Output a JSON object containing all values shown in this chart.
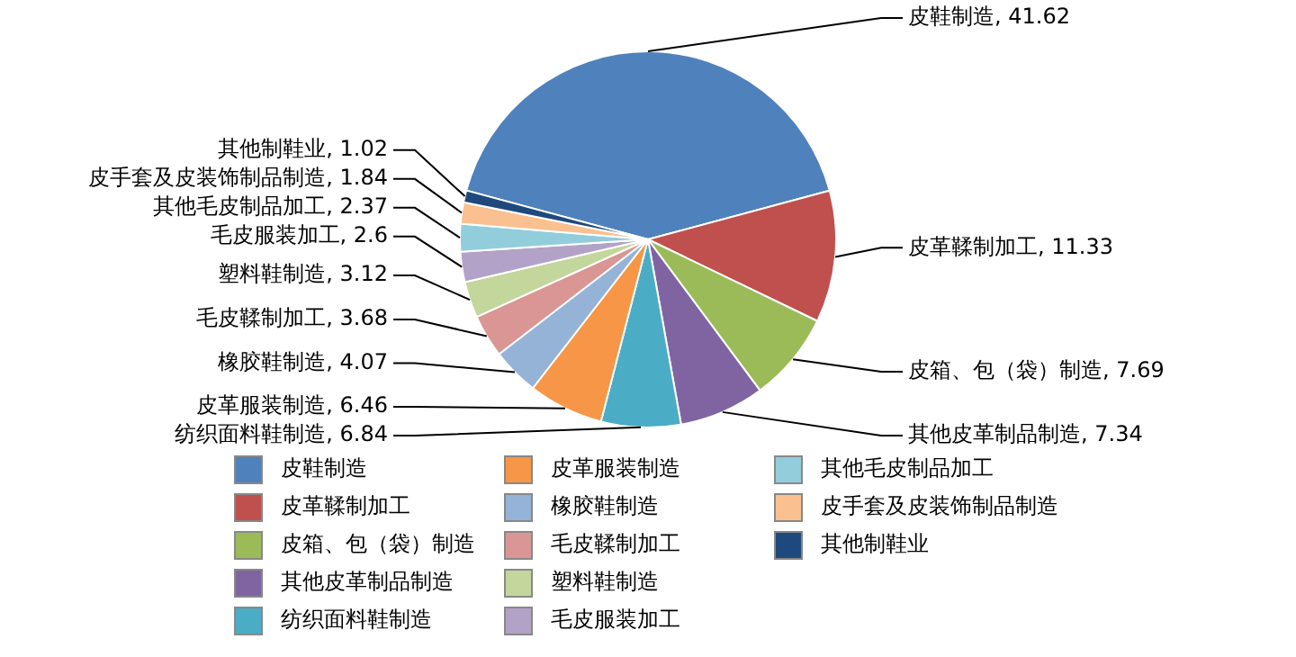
{
  "chart_data": {
    "type": "pie",
    "categories": [
      "皮鞋制造",
      "皮革鞣制加工",
      "皮箱、包（袋）制造",
      "其他皮革制品制造",
      "纺织面料鞋制造",
      "皮革服装制造",
      "橡胶鞋制造",
      "毛皮鞣制加工",
      "塑料鞋制造",
      "毛皮服装加工",
      "其他毛皮制品加工",
      "皮手套及皮装饰制品制造",
      "其他制鞋业"
    ],
    "values": [
      41.62,
      11.33,
      7.69,
      7.34,
      6.84,
      6.46,
      4.07,
      3.68,
      3.12,
      2.6,
      2.37,
      1.84,
      1.02
    ],
    "colors": [
      "#4f81bd",
      "#c0504d",
      "#9bbb59",
      "#8064a2",
      "#4bacc6",
      "#f79646",
      "#95b3d7",
      "#da9694",
      "#c3d69b",
      "#b3a2c7",
      "#92cddc",
      "#fac090",
      "#1f497d"
    ],
    "value_labels": [
      "皮鞋制造, 41.62",
      "皮革鞣制加工, 11.33",
      "皮箱、包（袋）制造, 7.69",
      "其他皮革制品制造, 7.34",
      "纺织面料鞋制造, 6.84",
      "皮革服装制造, 6.46",
      "橡胶鞋制造, 4.07",
      "毛皮鞣制加工, 3.68",
      "塑料鞋制造, 3.12",
      "毛皮服装加工, 2.6",
      "其他毛皮制品加工, 2.37",
      "皮手套及皮装饰制品制造, 1.84",
      "其他制鞋业, 1.02"
    ],
    "legend": "bottom"
  }
}
